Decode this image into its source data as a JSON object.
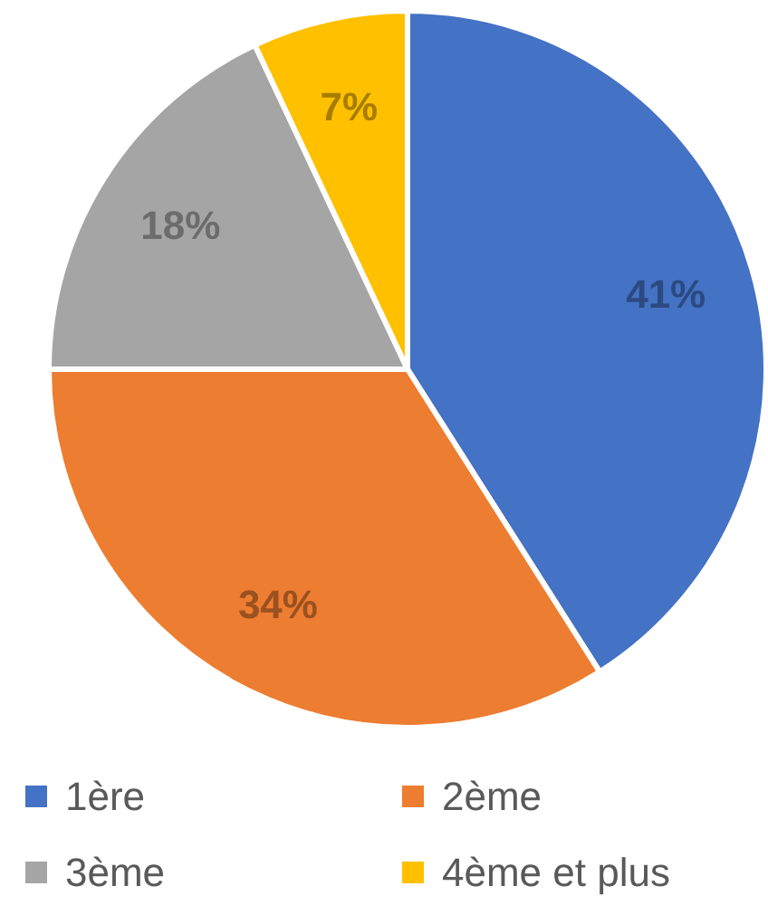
{
  "chart_data": {
    "type": "pie",
    "categories": [
      "1ère",
      "2ème",
      "3ème",
      "4ème et plus"
    ],
    "values": [
      41,
      34,
      18,
      7
    ],
    "colors": [
      "#4472c4",
      "#ed7d31",
      "#a5a5a5",
      "#ffc000"
    ],
    "value_labels": [
      "41%",
      "34%",
      "18%",
      "7%"
    ],
    "legend": "bottom"
  }
}
